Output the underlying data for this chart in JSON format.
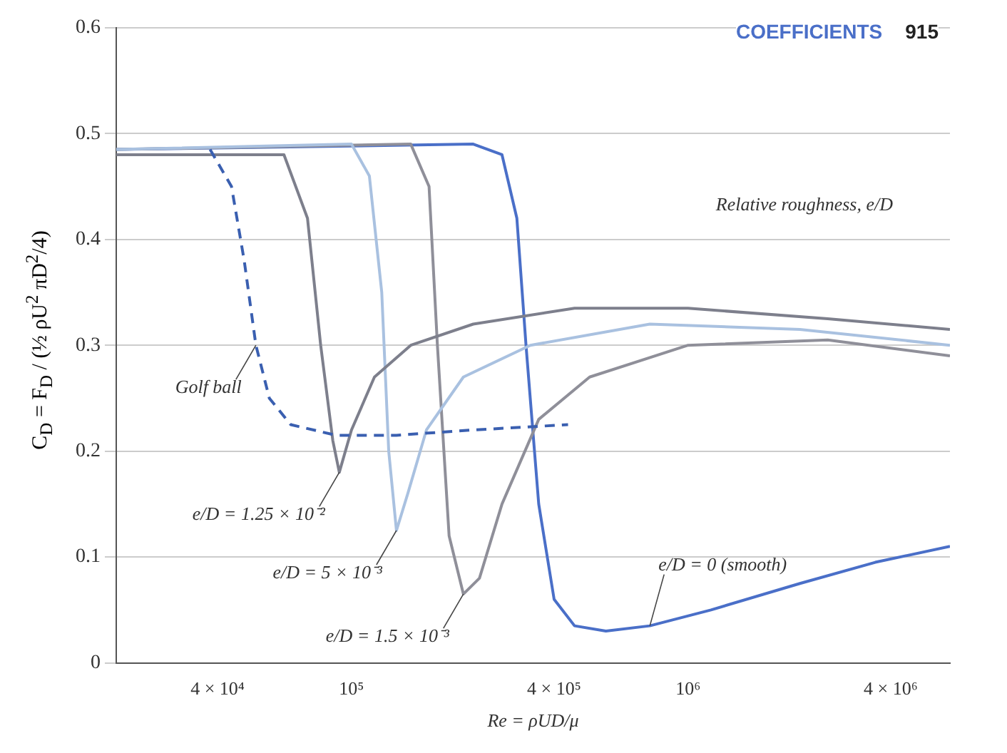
{
  "chart_data": {
    "type": "line",
    "log": "x",
    "xlabel": "Re = ρUD/μ",
    "ylabel": "C$_{D}$ = F$_{D}$ / (½ ρU$^{2}$ πD$^{2}$/4)",
    "xlim": [
      20000,
      6000000
    ],
    "xticks": [
      {
        "value": 40000,
        "label": "4 × 10⁴"
      },
      {
        "value": 100000,
        "label": "10⁵"
      },
      {
        "value": 400000,
        "label": "4 × 10⁵"
      },
      {
        "value": 1000000,
        "label": "10⁶"
      },
      {
        "value": 4000000,
        "label": "4 × 10⁶"
      }
    ],
    "ylim": [
      0,
      0.6
    ],
    "yticks": [
      0,
      0.1,
      0.2,
      0.3,
      0.4,
      0.5,
      0.6
    ],
    "grid": "y",
    "marker": "none",
    "series": [
      {
        "color": "#3a5fb0",
        "line_style": "dashed",
        "x": [
          38000,
          44000,
          48000,
          52000,
          57000,
          66000,
          90000,
          136000,
          230000,
          440000
        ],
        "values": [
          0.485,
          0.45,
          0.38,
          0.3,
          0.25,
          0.225,
          0.215,
          0.215,
          0.22,
          0.225
        ]
      },
      {
        "color": "#7d7f8c",
        "line_style": "solid",
        "x": [
          20000,
          63000,
          74000,
          81000,
          88000,
          92000,
          100000,
          117000,
          150000,
          230000,
          460000,
          1000000,
          2600000,
          6000000
        ],
        "values": [
          0.48,
          0.48,
          0.42,
          0.3,
          0.21,
          0.18,
          0.22,
          0.27,
          0.3,
          0.32,
          0.335,
          0.335,
          0.325,
          0.315
        ]
      },
      {
        "color": "#a9c1e0",
        "line_style": "solid",
        "x": [
          20000,
          100000,
          113000,
          123000,
          129000,
          136000,
          147000,
          167000,
          215000,
          340000,
          770000,
          2150000,
          6000000
        ],
        "values": [
          0.485,
          0.49,
          0.46,
          0.35,
          0.2,
          0.125,
          0.16,
          0.22,
          0.27,
          0.3,
          0.32,
          0.315,
          0.3
        ]
      },
      {
        "color": "#8f8f99",
        "line_style": "solid",
        "x": [
          20000,
          150000,
          170000,
          180000,
          195000,
          215000,
          240000,
          280000,
          360000,
          510000,
          1000000,
          2600000,
          6000000
        ],
        "values": [
          0.485,
          0.49,
          0.45,
          0.3,
          0.12,
          0.065,
          0.08,
          0.15,
          0.23,
          0.27,
          0.3,
          0.305,
          0.29
        ]
      },
      {
        "color": "#4a6fc8",
        "line_style": "solid",
        "x": [
          20000,
          230000,
          280000,
          310000,
          330000,
          360000,
          400000,
          460000,
          570000,
          770000,
          1170000,
          2150000,
          3600000,
          6000000
        ],
        "values": [
          0.485,
          0.49,
          0.48,
          0.42,
          0.3,
          0.15,
          0.06,
          0.035,
          0.03,
          0.035,
          0.05,
          0.075,
          0.095,
          0.11
        ]
      }
    ],
    "annotations": [
      {
        "text": "Golf ball",
        "x": 52000,
        "y": 0.3
      },
      {
        "text": "e/D = 1.25 × 10⁻²",
        "x": 92000,
        "y": 0.18
      },
      {
        "text": "e/D = 5 × 10⁻³",
        "x": 136000,
        "y": 0.125
      },
      {
        "text": "e/D = 1.5 × 10⁻³",
        "x": 215000,
        "y": 0.065
      },
      {
        "text": "e/D = 0 (smooth)",
        "x": 770000,
        "y": 0.035
      },
      "Relative roughness, e/D",
      "COEFFICIENTS",
      "915"
    ]
  }
}
